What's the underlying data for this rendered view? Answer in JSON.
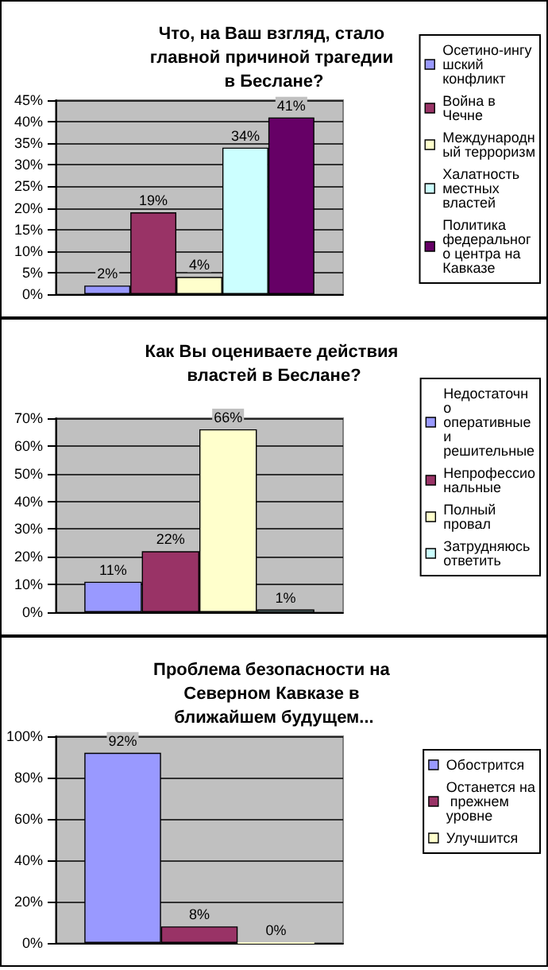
{
  "chart_data": [
    {
      "type": "bar",
      "title": "Что, на Ваш взгляд, стало главной причиной трагедии в Беслане?",
      "categories": [
        null
      ],
      "ylim": [
        0,
        45
      ],
      "yticks": [
        {
          "value": 0,
          "label": "0%"
        },
        {
          "value": 5,
          "label": "5%"
        },
        {
          "value": 10,
          "label": "10%"
        },
        {
          "value": 15,
          "label": "15%"
        },
        {
          "value": 20,
          "label": "20%"
        },
        {
          "value": 25,
          "label": "25%"
        },
        {
          "value": 30,
          "label": "30%"
        },
        {
          "value": 35,
          "label": "35%"
        },
        {
          "value": 40,
          "label": "40%"
        },
        {
          "value": 45,
          "label": "45%"
        }
      ],
      "grid": "y",
      "legend": "right",
      "series": [
        {
          "name": "Осетино-ингушский конфликт",
          "color": "#9999ff",
          "values": [
            2
          ],
          "value_labels": [
            "2%"
          ]
        },
        {
          "name": "Война в Чечне",
          "color": "#993366",
          "values": [
            19
          ],
          "value_labels": [
            "19%"
          ]
        },
        {
          "name": "Международный терроризм",
          "color": "#ffffcc",
          "values": [
            4
          ],
          "value_labels": [
            "4%"
          ]
        },
        {
          "name": "Халатность местных властей",
          "color": "#ccffff",
          "values": [
            34
          ],
          "value_labels": [
            "34%"
          ]
        },
        {
          "name": "Политика федерального центра на Кавказе",
          "color": "#660066",
          "values": [
            41
          ],
          "value_labels": [
            "41%"
          ]
        }
      ]
    },
    {
      "type": "bar",
      "title": "Как Вы оцениваете действия властей в Беслане?",
      "categories": [
        null
      ],
      "ylim": [
        0,
        70
      ],
      "yticks": [
        {
          "value": 0,
          "label": "0%"
        },
        {
          "value": 10,
          "label": "10%"
        },
        {
          "value": 20,
          "label": "20%"
        },
        {
          "value": 30,
          "label": "30%"
        },
        {
          "value": 40,
          "label": "40%"
        },
        {
          "value": 50,
          "label": "50%"
        },
        {
          "value": 60,
          "label": "60%"
        },
        {
          "value": 70,
          "label": "70%"
        }
      ],
      "grid": "y",
      "legend": "right",
      "series": [
        {
          "name": "Недостаточно оперативные и решительные",
          "color": "#9999ff",
          "values": [
            11
          ],
          "value_labels": [
            "11%"
          ]
        },
        {
          "name": "Непрофессиональные",
          "color": "#993366",
          "values": [
            22
          ],
          "value_labels": [
            "22%"
          ]
        },
        {
          "name": "Полный провал",
          "color": "#ffffcc",
          "values": [
            66
          ],
          "value_labels": [
            "66%"
          ]
        },
        {
          "name": "Затрудняюсь ответить",
          "color": "#ccffff",
          "values": [
            1
          ],
          "value_labels": [
            "1%"
          ]
        }
      ]
    },
    {
      "type": "bar",
      "title": "Проблема безопасности на Северном Кавказе в ближайшем будущем...",
      "categories": [
        null
      ],
      "ylim": [
        0,
        100
      ],
      "yticks": [
        {
          "value": 0,
          "label": "0%"
        },
        {
          "value": 20,
          "label": "20%"
        },
        {
          "value": 40,
          "label": "40%"
        },
        {
          "value": 60,
          "label": "60%"
        },
        {
          "value": 80,
          "label": "80%"
        },
        {
          "value": 100,
          "label": "100%"
        }
      ],
      "grid": "y",
      "legend": "right",
      "series": [
        {
          "name": "Обострится",
          "color": "#9999ff",
          "values": [
            92
          ],
          "value_labels": [
            "92%"
          ]
        },
        {
          "name": "Останется на прежнем уровне",
          "color": "#993366",
          "values": [
            8
          ],
          "value_labels": [
            "8%"
          ]
        },
        {
          "name": "Улучшится",
          "color": "#ffffcc",
          "values": [
            0
          ],
          "value_labels": [
            "0%"
          ]
        }
      ]
    }
  ]
}
